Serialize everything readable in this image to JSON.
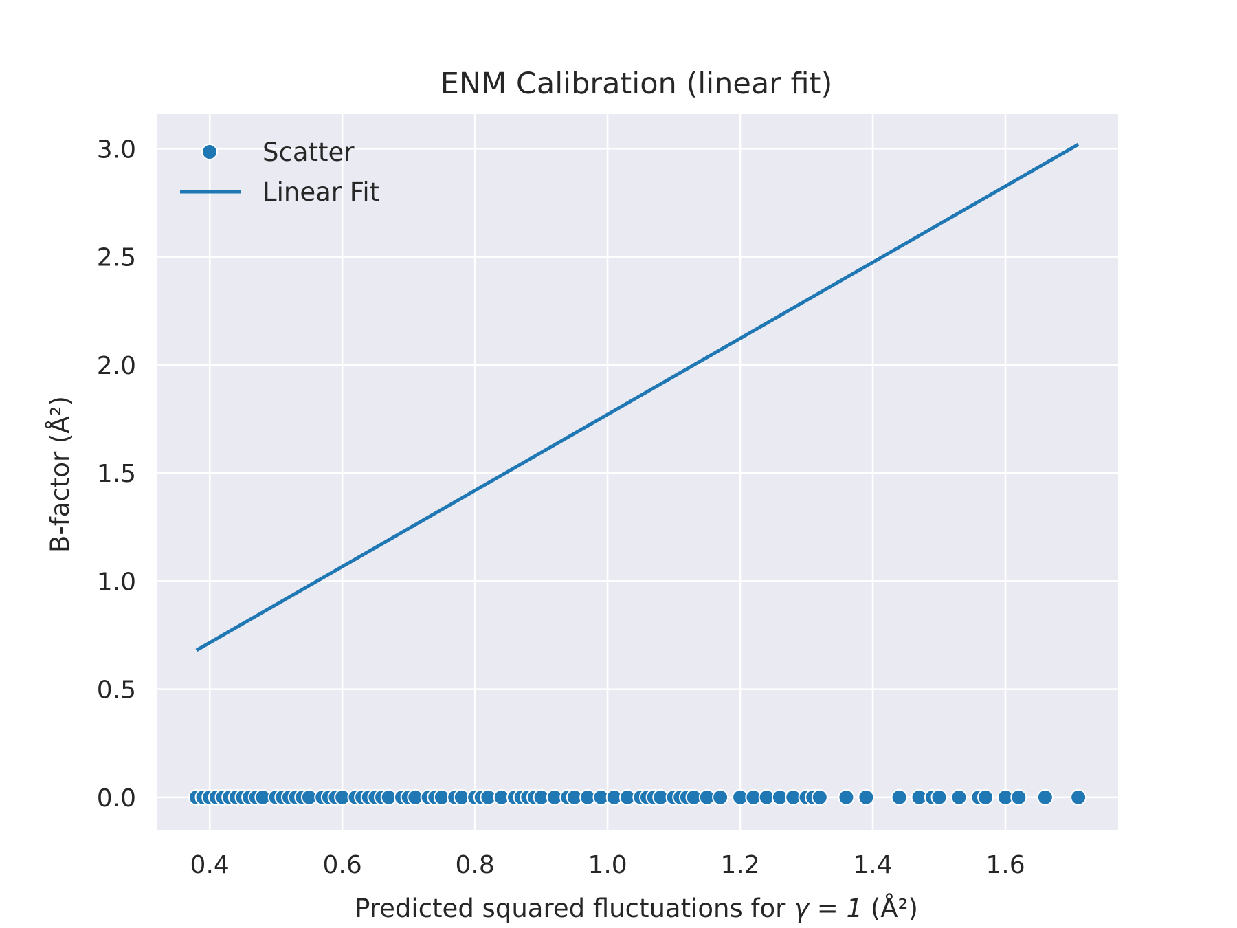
{
  "chart_data": {
    "type": "scatter",
    "title": "ENM Calibration (linear fit)",
    "xlabel_prefix": "Predicted squared fluctuations for ",
    "xlabel_symbol": "γ = 1",
    "xlabel_unit": "(Å²)",
    "ylabel": "B-factor (Å²)",
    "xlim": [
      0.32,
      1.77
    ],
    "ylim": [
      -0.15,
      3.16
    ],
    "x_ticks": [
      0.4,
      0.6,
      0.8,
      1.0,
      1.2,
      1.4,
      1.6
    ],
    "x_tick_labels": [
      "0.4",
      "0.6",
      "0.8",
      "1.0",
      "1.2",
      "1.4",
      "1.6"
    ],
    "y_ticks": [
      0.0,
      0.5,
      1.0,
      1.5,
      2.0,
      2.5,
      3.0
    ],
    "y_tick_labels": [
      "0.0",
      "0.5",
      "1.0",
      "1.5",
      "2.0",
      "2.5",
      "3.0"
    ],
    "grid": true,
    "legend_position": "top-left",
    "colors": {
      "series": "#1f77b4",
      "background": "#eaeaf2",
      "grid": "#ffffff"
    },
    "series": [
      {
        "name": "Scatter",
        "kind": "scatter",
        "x": [
          0.38,
          0.39,
          0.4,
          0.41,
          0.42,
          0.43,
          0.44,
          0.45,
          0.46,
          0.47,
          0.48,
          0.5,
          0.51,
          0.52,
          0.53,
          0.54,
          0.55,
          0.57,
          0.58,
          0.59,
          0.6,
          0.62,
          0.63,
          0.64,
          0.65,
          0.66,
          0.67,
          0.69,
          0.7,
          0.71,
          0.73,
          0.74,
          0.75,
          0.77,
          0.78,
          0.8,
          0.81,
          0.82,
          0.84,
          0.86,
          0.87,
          0.88,
          0.89,
          0.9,
          0.92,
          0.94,
          0.95,
          0.97,
          0.99,
          1.01,
          1.03,
          1.05,
          1.06,
          1.07,
          1.08,
          1.1,
          1.11,
          1.12,
          1.13,
          1.15,
          1.17,
          1.2,
          1.22,
          1.24,
          1.26,
          1.28,
          1.3,
          1.31,
          1.32,
          1.36,
          1.39,
          1.44,
          1.47,
          1.49,
          1.5,
          1.53,
          1.56,
          1.57,
          1.6,
          1.62,
          1.66,
          1.71
        ],
        "y": [
          0,
          0,
          0,
          0,
          0,
          0,
          0,
          0,
          0,
          0,
          0,
          0,
          0,
          0,
          0,
          0,
          0,
          0,
          0,
          0,
          0,
          0,
          0,
          0,
          0,
          0,
          0,
          0,
          0,
          0,
          0,
          0,
          0,
          0,
          0,
          0,
          0,
          0,
          0,
          0,
          0,
          0,
          0,
          0,
          0,
          0,
          0,
          0,
          0,
          0,
          0,
          0,
          0,
          0,
          0,
          0,
          0,
          0,
          0,
          0,
          0,
          0,
          0,
          0,
          0,
          0,
          0,
          0,
          0,
          0,
          0,
          0,
          0,
          0,
          0,
          0,
          0,
          0,
          0,
          0,
          0,
          0
        ]
      },
      {
        "name": "Linear Fit",
        "kind": "line",
        "x": [
          0.38,
          1.71
        ],
        "y": [
          0.68,
          3.02
        ]
      }
    ]
  }
}
